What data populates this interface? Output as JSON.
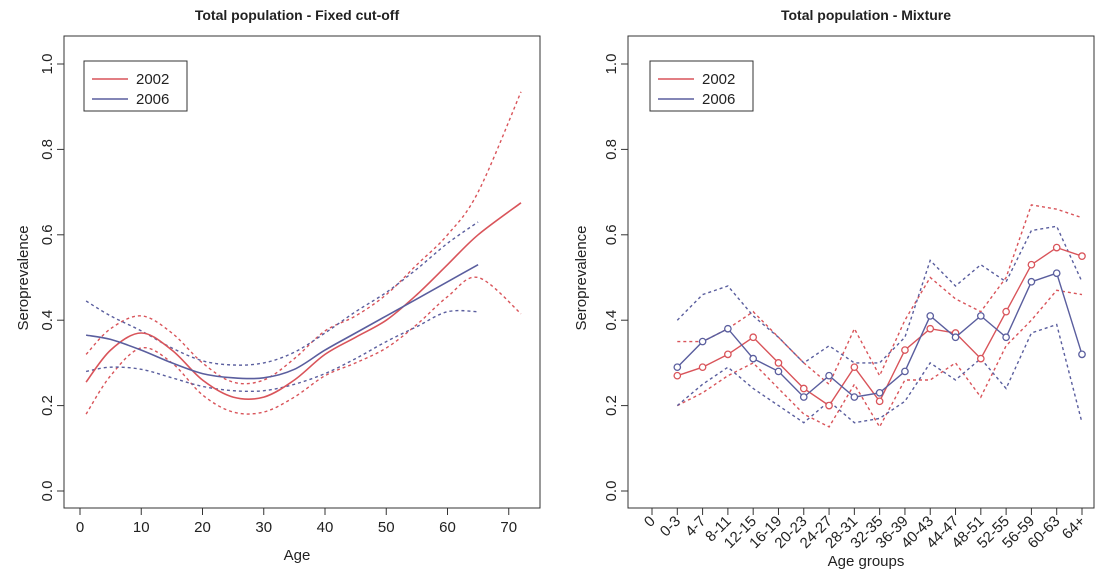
{
  "colors": {
    "red": "#d9545a",
    "blue": "#5a5e9e",
    "axis": "#333333"
  },
  "chart_data": [
    {
      "type": "line",
      "title": "Total population - Fixed cut-off",
      "xlabel": "Age",
      "ylabel": "Seroprevalence",
      "xlim": [
        0,
        72
      ],
      "ylim": [
        0,
        1
      ],
      "x_ticks": [
        "0",
        "10",
        "20",
        "30",
        "40",
        "50",
        "60",
        "70"
      ],
      "x_tick_values": [
        0,
        10,
        20,
        30,
        40,
        50,
        60,
        70
      ],
      "y_ticks": [
        "0.0",
        "0.2",
        "0.4",
        "0.6",
        "0.8",
        "1.0"
      ],
      "y_tick_values": [
        0,
        0.2,
        0.4,
        0.6,
        0.8,
        1.0
      ],
      "legend": {
        "position": "top-left",
        "entries": [
          "2002",
          "2006"
        ]
      },
      "series": [
        {
          "name": "2002",
          "color": "red",
          "x": [
            1,
            5,
            10,
            15,
            20,
            25,
            30,
            35,
            40,
            45,
            50,
            55,
            60,
            65,
            72
          ],
          "estimate": [
            0.255,
            0.33,
            0.37,
            0.33,
            0.26,
            0.22,
            0.22,
            0.26,
            0.32,
            0.36,
            0.4,
            0.46,
            0.53,
            0.6,
            0.675
          ],
          "lower": [
            0.18,
            0.27,
            0.335,
            0.3,
            0.225,
            0.185,
            0.185,
            0.22,
            0.27,
            0.3,
            0.335,
            0.39,
            0.455,
            0.5,
            0.415
          ],
          "upper": [
            0.32,
            0.38,
            0.41,
            0.37,
            0.3,
            0.255,
            0.26,
            0.31,
            0.375,
            0.41,
            0.46,
            0.53,
            0.6,
            0.7,
            0.935
          ]
        },
        {
          "name": "2006",
          "color": "blue",
          "x": [
            1,
            5,
            10,
            15,
            20,
            25,
            30,
            35,
            40,
            45,
            50,
            55,
            60,
            65
          ],
          "estimate": [
            0.365,
            0.355,
            0.33,
            0.3,
            0.275,
            0.265,
            0.265,
            0.285,
            0.33,
            0.37,
            0.41,
            0.45,
            0.49,
            0.53
          ],
          "lower": [
            0.28,
            0.29,
            0.285,
            0.265,
            0.245,
            0.235,
            0.235,
            0.25,
            0.275,
            0.31,
            0.35,
            0.385,
            0.42,
            0.42
          ],
          "upper": [
            0.445,
            0.41,
            0.375,
            0.335,
            0.305,
            0.295,
            0.3,
            0.325,
            0.37,
            0.42,
            0.465,
            0.52,
            0.58,
            0.63
          ]
        }
      ]
    },
    {
      "type": "line",
      "title": "Total population - Mixture",
      "xlabel": "Age groups",
      "ylabel": "Seroprevalence",
      "ylim": [
        0,
        1
      ],
      "categories": [
        "0",
        "0-3",
        "4-7",
        "8-11",
        "12-15",
        "16-19",
        "20-23",
        "24-27",
        "28-31",
        "32-35",
        "36-39",
        "40-43",
        "44-47",
        "48-51",
        "52-55",
        "56-59",
        "60-63",
        "64+"
      ],
      "y_ticks": [
        "0.0",
        "0.2",
        "0.4",
        "0.6",
        "0.8",
        "1.0"
      ],
      "y_tick_values": [
        0,
        0.2,
        0.4,
        0.6,
        0.8,
        1.0
      ],
      "legend": {
        "position": "top-left",
        "entries": [
          "2002",
          "2006"
        ]
      },
      "series": [
        {
          "name": "2002",
          "color": "red",
          "values": [
            null,
            0.27,
            0.29,
            0.32,
            0.36,
            0.3,
            0.24,
            0.2,
            0.29,
            0.21,
            0.33,
            0.38,
            0.37,
            0.31,
            0.42,
            0.53,
            0.57,
            0.55
          ],
          "lower": [
            null,
            0.2,
            0.23,
            0.27,
            0.3,
            0.24,
            0.18,
            0.15,
            0.25,
            0.15,
            0.26,
            0.26,
            0.3,
            0.22,
            0.34,
            0.4,
            0.47,
            0.46
          ],
          "upper": [
            null,
            0.35,
            0.35,
            0.38,
            0.42,
            0.36,
            0.3,
            0.25,
            0.38,
            0.27,
            0.4,
            0.5,
            0.45,
            0.42,
            0.5,
            0.67,
            0.66,
            0.64
          ]
        },
        {
          "name": "2006",
          "color": "blue",
          "values": [
            null,
            0.29,
            0.35,
            0.38,
            0.31,
            0.28,
            0.22,
            0.27,
            0.22,
            0.23,
            0.28,
            0.41,
            0.36,
            0.41,
            0.36,
            0.49,
            0.51,
            0.32
          ],
          "lower": [
            null,
            0.2,
            0.25,
            0.29,
            0.24,
            0.2,
            0.16,
            0.21,
            0.16,
            0.17,
            0.21,
            0.3,
            0.26,
            0.31,
            0.24,
            0.37,
            0.39,
            0.16
          ],
          "upper": [
            null,
            0.4,
            0.46,
            0.48,
            0.41,
            0.36,
            0.3,
            0.34,
            0.3,
            0.3,
            0.36,
            0.54,
            0.48,
            0.53,
            0.49,
            0.61,
            0.62,
            0.49
          ]
        }
      ]
    }
  ]
}
